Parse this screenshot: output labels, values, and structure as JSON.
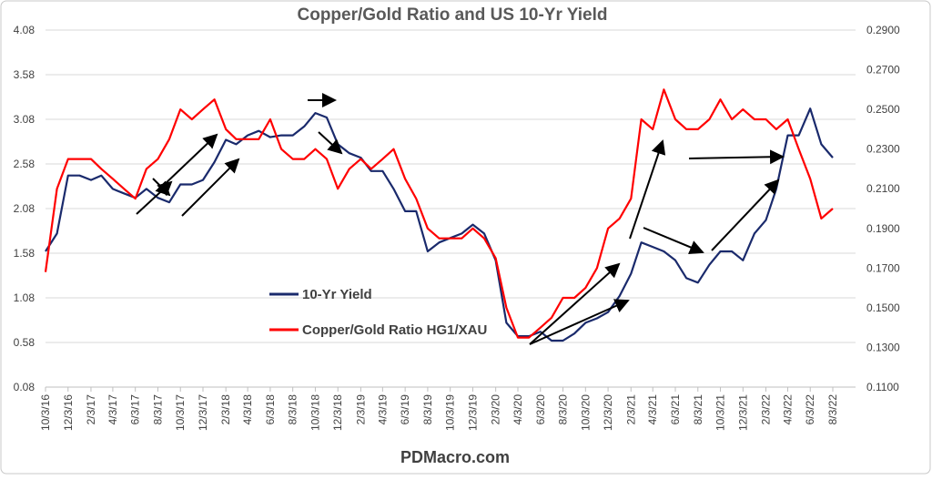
{
  "chart_data": {
    "type": "line",
    "title": "Copper/Gold Ratio and US 10-Yr Yield",
    "footer": "PDMacro.com",
    "x": [
      "10/3/16",
      "11/3/16",
      "12/3/16",
      "1/3/17",
      "2/3/17",
      "3/3/17",
      "4/3/17",
      "5/3/17",
      "6/3/17",
      "7/3/17",
      "8/3/17",
      "9/3/17",
      "10/3/17",
      "11/3/17",
      "12/3/17",
      "1/3/18",
      "2/3/18",
      "3/3/18",
      "4/3/18",
      "5/3/18",
      "6/3/18",
      "7/3/18",
      "8/3/18",
      "9/3/18",
      "10/3/18",
      "11/3/18",
      "12/3/18",
      "1/3/19",
      "2/3/19",
      "3/3/19",
      "4/3/19",
      "5/3/19",
      "6/3/19",
      "7/3/19",
      "8/3/19",
      "9/3/19",
      "10/3/19",
      "11/3/19",
      "12/3/19",
      "1/3/20",
      "2/3/20",
      "3/3/20",
      "4/3/20",
      "5/3/20",
      "6/3/20",
      "7/3/20",
      "8/3/20",
      "9/3/20",
      "10/3/20",
      "11/3/20",
      "12/3/20",
      "1/3/21",
      "2/3/21",
      "3/3/21",
      "4/3/21",
      "5/3/21",
      "6/3/21",
      "7/3/21",
      "8/3/21",
      "9/3/21",
      "10/3/21",
      "11/3/21",
      "12/3/21",
      "1/3/22",
      "2/3/22",
      "3/3/22",
      "4/3/22",
      "5/3/22",
      "6/3/22",
      "7/3/22",
      "8/3/22"
    ],
    "xlim": [
      "10/3/16",
      "8/3/22"
    ],
    "xticks": [
      "10/3/16",
      "12/3/16",
      "2/3/17",
      "4/3/17",
      "6/3/17",
      "8/3/17",
      "10/3/17",
      "12/3/17",
      "2/3/18",
      "4/3/18",
      "6/3/18",
      "8/3/18",
      "10/3/18",
      "12/3/18",
      "2/3/19",
      "4/3/19",
      "6/3/19",
      "8/3/19",
      "10/3/19",
      "12/3/19",
      "2/3/20",
      "4/3/20",
      "6/3/20",
      "8/3/20",
      "10/3/20",
      "12/3/20",
      "2/3/21",
      "4/3/21",
      "6/3/21",
      "8/3/21",
      "10/3/21",
      "12/3/21",
      "2/3/22",
      "4/3/22",
      "6/3/22",
      "8/3/22"
    ],
    "ylim": [
      0.08,
      4.08
    ],
    "yticks": [
      0.08,
      0.58,
      1.08,
      1.58,
      2.08,
      2.58,
      3.08,
      3.58,
      4.08
    ],
    "y2lim": [
      0.11,
      0.29
    ],
    "y2ticks": [
      {
        "value": 0.11,
        "label": "0.1100"
      },
      {
        "value": 0.13,
        "label": "0.1300"
      },
      {
        "value": 0.15,
        "label": "0.1500"
      },
      {
        "value": 0.17,
        "label": "0.1700"
      },
      {
        "value": 0.19,
        "label": "0.1900"
      },
      {
        "value": 0.21,
        "label": "0.2100"
      },
      {
        "value": 0.23,
        "label": "0.2300"
      },
      {
        "value": 0.25,
        "label": "0.2500"
      },
      {
        "value": 0.27,
        "label": "0.2700"
      },
      {
        "value": 0.29,
        "label": "0.2900"
      }
    ],
    "grid": true,
    "series": [
      {
        "name": "10-Yr Yield",
        "color": "#1a2a6c",
        "axis": "y",
        "values": [
          1.6,
          1.8,
          2.45,
          2.45,
          2.4,
          2.45,
          2.3,
          2.25,
          2.2,
          2.3,
          2.2,
          2.15,
          2.35,
          2.35,
          2.4,
          2.6,
          2.85,
          2.8,
          2.9,
          2.95,
          2.88,
          2.9,
          2.9,
          3.0,
          3.15,
          3.1,
          2.8,
          2.7,
          2.65,
          2.5,
          2.5,
          2.3,
          2.05,
          2.05,
          1.6,
          1.7,
          1.75,
          1.8,
          1.9,
          1.8,
          1.5,
          0.8,
          0.65,
          0.65,
          0.7,
          0.6,
          0.6,
          0.68,
          0.8,
          0.85,
          0.92,
          1.1,
          1.35,
          1.7,
          1.65,
          1.6,
          1.5,
          1.3,
          1.25,
          1.45,
          1.6,
          1.6,
          1.5,
          1.8,
          1.95,
          2.3,
          2.9,
          2.9,
          3.2,
          2.8,
          2.65
        ]
      },
      {
        "name": "Copper/Gold Ratio HG1/XAU",
        "color": "#ff0000",
        "axis": "y2",
        "values": [
          0.168,
          0.21,
          0.225,
          0.225,
          0.225,
          0.22,
          0.215,
          0.21,
          0.205,
          0.22,
          0.225,
          0.235,
          0.25,
          0.245,
          0.25,
          0.255,
          0.24,
          0.235,
          0.235,
          0.235,
          0.245,
          0.23,
          0.225,
          0.225,
          0.23,
          0.225,
          0.21,
          0.22,
          0.225,
          0.22,
          0.225,
          0.23,
          0.215,
          0.205,
          0.19,
          0.185,
          0.185,
          0.185,
          0.19,
          0.185,
          0.175,
          0.15,
          0.135,
          0.135,
          0.14,
          0.145,
          0.155,
          0.155,
          0.16,
          0.17,
          0.19,
          0.195,
          0.205,
          0.245,
          0.24,
          0.26,
          0.245,
          0.24,
          0.24,
          0.245,
          0.255,
          0.245,
          0.25,
          0.245,
          0.245,
          0.24,
          0.245,
          0.23,
          0.215,
          0.195,
          0.2
        ]
      }
    ]
  }
}
